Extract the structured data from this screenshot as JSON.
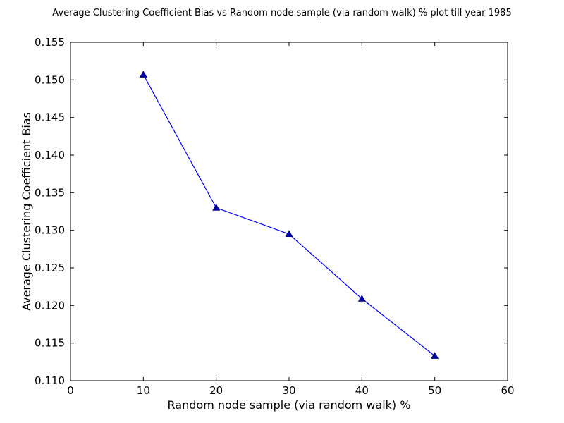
{
  "chart_data": {
    "type": "line",
    "title": "Average Clustering Coefficient Bias vs Random node sample (via random walk) % plot till year 1985",
    "xlabel": "Random node sample (via random walk) %",
    "ylabel": "Average Clustering Coefficient Bias",
    "xlim": [
      0,
      60
    ],
    "ylim": [
      0.11,
      0.155
    ],
    "x_ticks": [
      0,
      10,
      20,
      30,
      40,
      50,
      60
    ],
    "x_tick_labels": [
      "0",
      "10",
      "20",
      "30",
      "40",
      "50",
      "60"
    ],
    "y_ticks": [
      0.11,
      0.115,
      0.12,
      0.125,
      0.13,
      0.135,
      0.14,
      0.145,
      0.15,
      0.155
    ],
    "y_tick_labels": [
      "0.110",
      "0.115",
      "0.120",
      "0.125",
      "0.130",
      "0.135",
      "0.140",
      "0.145",
      "0.150",
      "0.155"
    ],
    "grid": false,
    "legend": "none",
    "series": [
      {
        "x": [
          10,
          20,
          30,
          40,
          50
        ],
        "values": [
          0.1507,
          0.133,
          0.1295,
          0.1209,
          0.1133
        ],
        "color": "#0000ff",
        "marker": "triangle"
      }
    ]
  }
}
